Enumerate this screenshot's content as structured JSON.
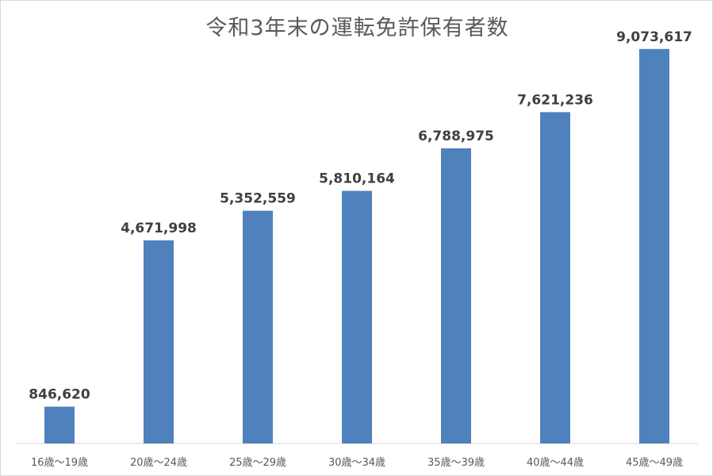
{
  "chart_data": {
    "type": "bar",
    "title": "令和3年末の運転免許保有者数",
    "categories": [
      "16歳～19歳",
      "20歳～24歳",
      "25歳～29歳",
      "30歳～34歳",
      "35歳～39歳",
      "40歳～44歳",
      "45歳～49歳"
    ],
    "values": [
      846620,
      4671998,
      5352559,
      5810164,
      6788975,
      7621236,
      9073617
    ],
    "value_labels": [
      "846,620",
      "4,671,998",
      "5,352,559",
      "5,810,164",
      "6,788,975",
      "7,621,236",
      "9,073,617"
    ],
    "xlabel": "",
    "ylabel": "",
    "ylim": [
      0,
      10000000
    ],
    "grid": false,
    "legend": "none",
    "bar_color": "#4f81bd"
  }
}
